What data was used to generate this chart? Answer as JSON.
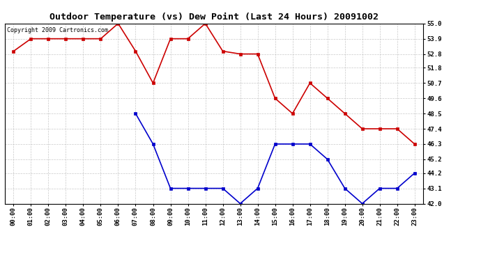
{
  "title": "Outdoor Temperature (vs) Dew Point (Last 24 Hours) 20091002",
  "copyright": "Copyright 2009 Cartronics.com",
  "x_labels": [
    "00:00",
    "01:00",
    "02:00",
    "03:00",
    "04:00",
    "05:00",
    "06:00",
    "07:00",
    "08:00",
    "09:00",
    "10:00",
    "11:00",
    "12:00",
    "13:00",
    "14:00",
    "15:00",
    "16:00",
    "17:00",
    "18:00",
    "19:00",
    "20:00",
    "21:00",
    "22:00",
    "23:00"
  ],
  "temp_data": [
    53.0,
    53.9,
    53.9,
    53.9,
    53.9,
    53.9,
    55.0,
    53.0,
    50.7,
    53.9,
    53.9,
    55.0,
    53.0,
    52.8,
    52.8,
    49.6,
    48.5,
    50.7,
    49.6,
    48.5,
    47.4,
    47.4,
    47.4,
    46.3
  ],
  "dew_data": [
    null,
    null,
    null,
    null,
    null,
    null,
    null,
    48.5,
    46.3,
    43.1,
    43.1,
    43.1,
    43.1,
    42.0,
    43.1,
    46.3,
    46.3,
    46.3,
    45.2,
    43.1,
    42.0,
    43.1,
    43.1,
    44.2
  ],
  "ylim_min": 42.0,
  "ylim_max": 55.0,
  "yticks": [
    42.0,
    43.1,
    44.2,
    45.2,
    46.3,
    47.4,
    48.5,
    49.6,
    50.7,
    51.8,
    52.8,
    53.9,
    55.0
  ],
  "temp_color": "#cc0000",
  "dew_color": "#0000cc",
  "bg_color": "#ffffff",
  "grid_color": "#bbbbbb",
  "title_fontsize": 9.5,
  "axis_fontsize": 6.5,
  "copyright_fontsize": 6
}
